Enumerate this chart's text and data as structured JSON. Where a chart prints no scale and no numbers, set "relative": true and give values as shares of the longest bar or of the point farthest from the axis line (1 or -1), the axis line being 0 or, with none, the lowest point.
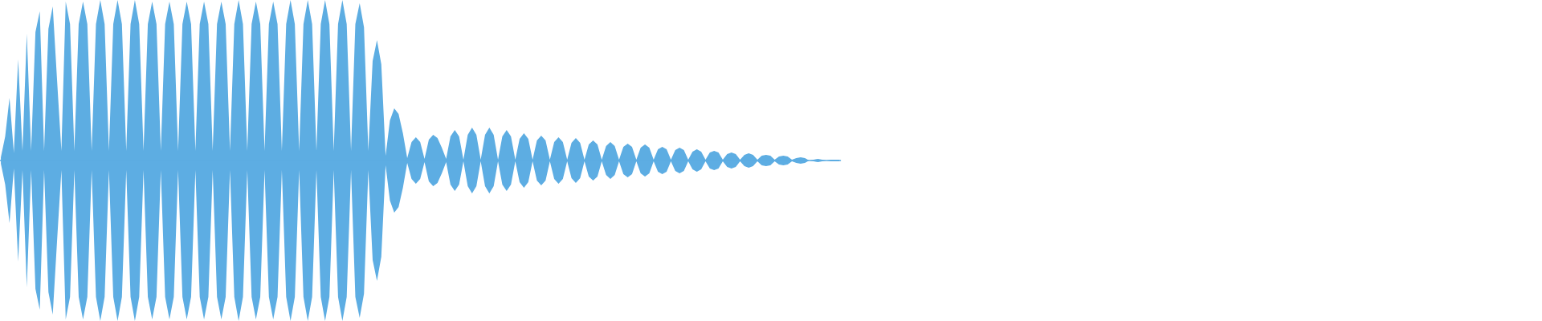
{
  "chart_data": {
    "type": "area",
    "relative": true,
    "tick_labels": false,
    "categories": [
      null,
      null,
      null,
      null,
      null,
      null,
      null,
      null,
      null,
      null,
      null,
      null,
      null,
      null,
      null,
      null,
      null,
      null,
      null,
      null,
      null,
      null,
      null,
      null,
      null,
      null,
      null,
      null,
      null,
      null,
      null,
      null,
      null,
      null,
      null,
      null,
      null,
      null,
      null,
      null,
      null,
      null,
      null,
      null,
      null,
      null,
      null,
      null,
      null,
      null,
      null,
      null,
      null,
      null,
      null,
      null,
      null,
      null,
      null,
      null,
      null,
      null,
      null,
      null,
      null,
      null,
      null,
      null,
      null,
      null,
      null,
      null,
      null,
      null,
      null,
      null,
      null,
      null,
      null,
      null,
      null,
      null,
      null,
      null,
      null,
      null,
      null,
      null,
      null,
      null,
      null,
      null,
      null,
      null,
      null,
      null,
      null,
      null,
      null,
      null,
      null,
      null,
      null,
      null,
      null,
      null,
      null,
      null,
      null,
      null,
      null,
      null,
      null,
      null,
      null,
      null,
      null,
      null,
      null,
      null,
      null,
      null,
      null,
      null,
      null,
      null,
      null,
      null,
      null,
      null,
      null,
      null,
      null,
      null,
      null,
      null,
      null,
      null,
      null,
      null,
      null,
      null,
      null,
      null,
      null,
      null,
      null,
      null,
      null,
      null,
      null,
      null,
      null,
      null,
      null,
      null,
      null,
      null,
      null,
      null,
      null,
      null,
      null,
      null,
      null,
      null,
      null,
      null,
      null,
      null,
      null,
      null,
      null,
      null,
      null,
      null,
      null,
      null,
      null,
      null,
      null,
      null,
      null,
      null,
      null,
      null,
      null,
      null,
      null,
      null,
      null,
      null,
      null,
      null,
      null
    ],
    "series": [
      {
        "color": "#5dade2",
        "values": [
          0.02,
          0.15,
          0.39,
          0.05,
          0.63,
          0.06,
          0.79,
          0.06,
          0.8,
          0.93,
          0.06,
          0.82,
          0.96,
          0.5,
          0.06,
          0.99,
          0.85,
          0.06,
          0.85,
          0.99,
          0.85,
          0.06,
          0.85,
          1,
          0.85,
          0.06,
          0.85,
          1,
          0.85,
          0.06,
          0.85,
          1,
          0.85,
          0.06,
          0.85,
          0.99,
          0.85,
          0.06,
          0.85,
          0.99,
          0.85,
          0.06,
          0.85,
          0.99,
          0.85,
          0.06,
          0.85,
          0.99,
          0.85,
          0.06,
          0.85,
          0.99,
          0.85,
          0.06,
          0.85,
          1,
          0.85,
          0.06,
          0.85,
          0.99,
          0.85,
          0.06,
          0.85,
          0.99,
          0.85,
          0.06,
          0.85,
          1,
          0.85,
          0.06,
          0.85,
          1,
          0.85,
          0.06,
          0.85,
          1,
          0.85,
          0.06,
          0.85,
          1,
          0.85,
          0.06,
          0.85,
          0.98,
          0.83,
          0.06,
          0.62,
          0.75,
          0.6,
          0.03,
          0.25,
          0.325,
          0.29,
          0.17,
          0.015,
          0.115,
          0.145,
          0.115,
          0.01,
          0.13,
          0.16,
          0.14,
          0.08,
          0.01,
          0.15,
          0.19,
          0.15,
          0.005,
          0.16,
          0.205,
          0.16,
          0.005,
          0.16,
          0.205,
          0.16,
          0.005,
          0.15,
          0.19,
          0.15,
          0.005,
          0.135,
          0.17,
          0.135,
          0.005,
          0.125,
          0.155,
          0.125,
          0.005,
          0.115,
          0.145,
          0.115,
          0.005,
          0.11,
          0.14,
          0.11,
          0.005,
          0.1,
          0.125,
          0.1,
          0.005,
          0.09,
          0.115,
          0.09,
          0.005,
          0.085,
          0.105,
          0.085,
          0.005,
          0.08,
          0.1,
          0.08,
          0.005,
          0.07,
          0.085,
          0.07,
          0.005,
          0.065,
          0.08,
          0.065,
          0.005,
          0.055,
          0.07,
          0.055,
          0.005,
          0.05,
          0.06,
          0.05,
          0.005,
          0.04,
          0.05,
          0.04,
          0.005,
          0.035,
          0.045,
          0.035,
          0.005,
          0.03,
          0.035,
          0.03,
          0.005,
          0.025,
          0.03,
          0.025,
          0.005,
          0.015,
          0.02,
          0.015,
          0,
          0.005,
          0.01,
          0.005,
          0,
          0.005,
          0.005,
          0.005
        ]
      },
      {
        "color": "#5dade3",
        "values": [
          -0.02,
          -0.15,
          -0.39,
          -0.05,
          -0.63,
          -0.06,
          -0.79,
          -0.06,
          -0.8,
          -0.93,
          -0.06,
          -0.82,
          -0.96,
          -0.5,
          -0.06,
          -0.99,
          -0.85,
          -0.06,
          -0.85,
          -0.99,
          -0.85,
          -0.06,
          -0.85,
          -1,
          -0.85,
          -0.06,
          -0.85,
          -1,
          -0.85,
          -0.06,
          -0.85,
          -1,
          -0.85,
          -0.06,
          -0.85,
          -0.99,
          -0.85,
          -0.06,
          -0.85,
          -0.99,
          -0.85,
          -0.06,
          -0.85,
          -0.99,
          -0.85,
          -0.06,
          -0.85,
          -0.99,
          -0.85,
          -0.06,
          -0.85,
          -0.99,
          -0.85,
          -0.06,
          -0.85,
          -1,
          -0.85,
          -0.06,
          -0.85,
          -0.99,
          -0.85,
          -0.06,
          -0.85,
          -0.99,
          -0.85,
          -0.06,
          -0.85,
          -1,
          -0.85,
          -0.06,
          -0.85,
          -1,
          -0.85,
          -0.06,
          -0.85,
          -1,
          -0.85,
          -0.06,
          -0.85,
          -1,
          -0.85,
          -0.06,
          -0.85,
          -0.98,
          -0.83,
          -0.06,
          -0.62,
          -0.75,
          -0.6,
          -0.03,
          -0.25,
          -0.325,
          -0.29,
          -0.17,
          -0.015,
          -0.115,
          -0.145,
          -0.115,
          -0.01,
          -0.13,
          -0.16,
          -0.14,
          -0.08,
          -0.01,
          -0.15,
          -0.19,
          -0.15,
          -0.005,
          -0.16,
          -0.205,
          -0.16,
          -0.005,
          -0.16,
          -0.205,
          -0.16,
          -0.005,
          -0.15,
          -0.19,
          -0.15,
          -0.005,
          -0.135,
          -0.17,
          -0.135,
          -0.005,
          -0.125,
          -0.155,
          -0.125,
          -0.005,
          -0.115,
          -0.145,
          -0.115,
          -0.005,
          -0.11,
          -0.14,
          -0.11,
          -0.005,
          -0.1,
          -0.125,
          -0.1,
          -0.005,
          -0.09,
          -0.115,
          -0.09,
          -0.005,
          -0.085,
          -0.105,
          -0.085,
          -0.005,
          -0.08,
          -0.1,
          -0.08,
          -0.005,
          -0.07,
          -0.085,
          -0.07,
          -0.005,
          -0.065,
          -0.08,
          -0.065,
          -0.005,
          -0.055,
          -0.07,
          -0.055,
          -0.005,
          -0.05,
          -0.06,
          -0.05,
          -0.005,
          -0.04,
          -0.05,
          -0.04,
          -0.005,
          -0.035,
          -0.045,
          -0.035,
          -0.005,
          -0.03,
          -0.035,
          -0.03,
          -0.005,
          -0.025,
          -0.03,
          -0.025,
          -0.005,
          -0.015,
          -0.02,
          -0.015,
          0,
          -0.005,
          -0.01,
          -0.005,
          0,
          -0.005,
          -0.005,
          -0.005
        ]
      }
    ]
  }
}
